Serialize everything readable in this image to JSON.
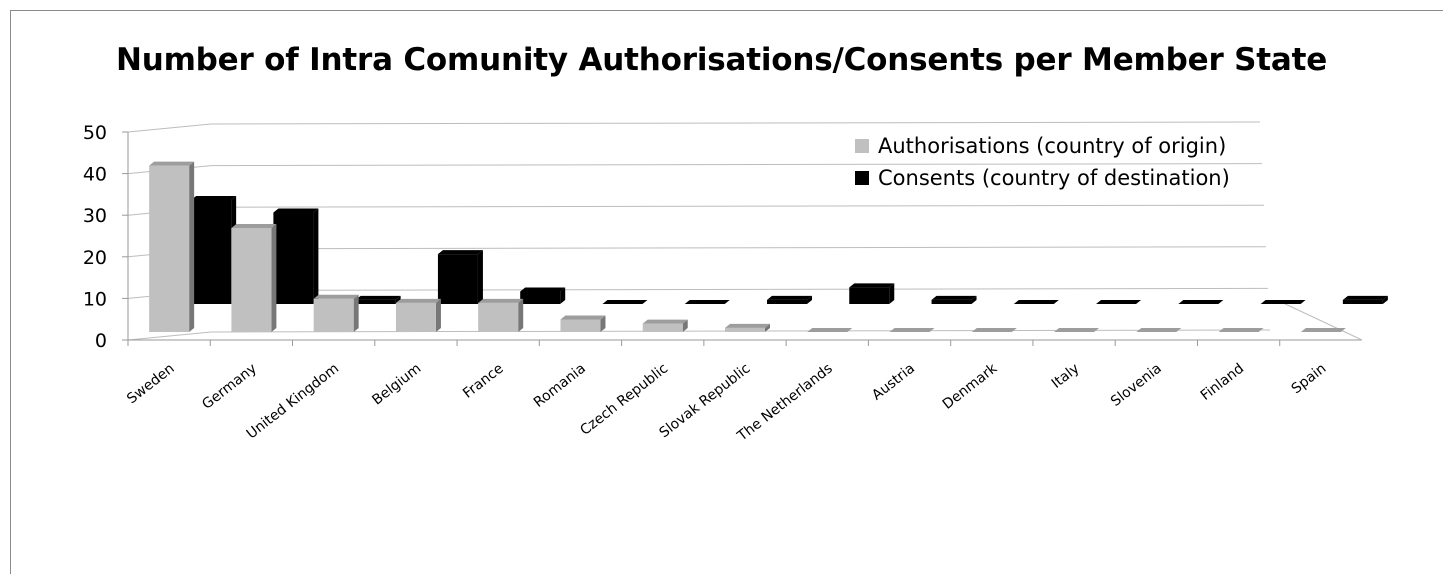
{
  "chart_data": {
    "type": "bar",
    "title": "Number of Intra Comunity Authorisations/Consents per Member State",
    "categories": [
      "Sweden",
      "Germany",
      "United Kingdom",
      "Belgium",
      "France",
      "Romania",
      "Czech Republic",
      "Slovak Republic",
      "The Netherlands",
      "Austria",
      "Denmark",
      "Italy",
      "Slovenia",
      "Finland",
      "Spain"
    ],
    "series": [
      {
        "name": "Authorisations (country of origin)",
        "color": "#c0c0c0",
        "values": [
          40,
          25,
          8,
          7,
          7,
          3,
          2,
          1,
          0,
          0,
          0,
          0,
          0,
          0,
          0
        ]
      },
      {
        "name": "Consents (country of destination)",
        "color": "#000000",
        "values": [
          25,
          22,
          1,
          12,
          3,
          0,
          0,
          1,
          4,
          1,
          0,
          0,
          0,
          0,
          1
        ]
      }
    ],
    "yticks": [
      "0",
      "10",
      "20",
      "30",
      "40",
      "50"
    ],
    "ylim": [
      0,
      50
    ],
    "xlabel": "",
    "ylabel": "",
    "grid": true,
    "legend_position": "top-right"
  }
}
